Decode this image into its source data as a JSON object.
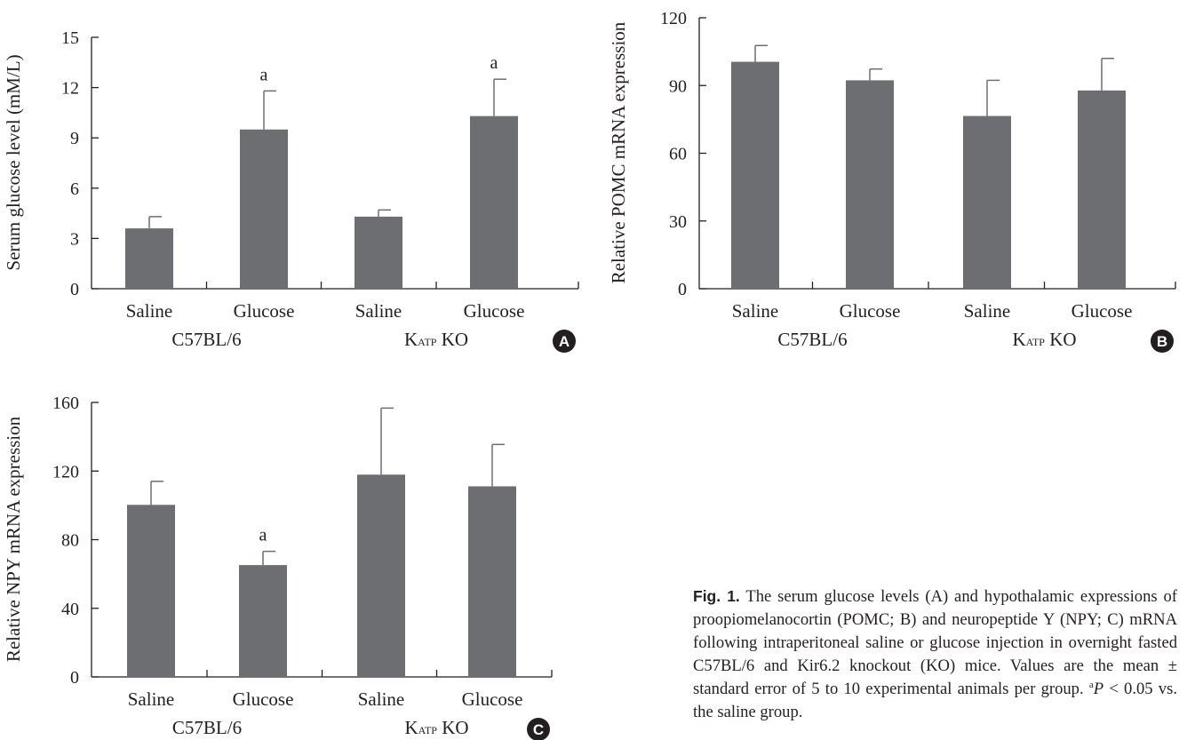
{
  "chart_data": [
    {
      "panel": "A",
      "type": "bar",
      "categories": [
        "Saline",
        "Glucose",
        "Saline",
        "Glucose"
      ],
      "groups": [
        {
          "label_main": "C57BL/6",
          "label_sub": ""
        },
        {
          "label_main": "K",
          "label_sub": "ATP",
          "label_tail": " KO"
        }
      ],
      "values": [
        3.6,
        9.5,
        4.3,
        10.3
      ],
      "errors": [
        0.7,
        2.3,
        0.4,
        2.2
      ],
      "significance": [
        "",
        "a",
        "",
        "a"
      ],
      "ylabel": "Serum glucose level (mM/L)",
      "yticks": [
        0,
        3,
        6,
        9,
        12,
        15
      ],
      "ylim": [
        0,
        15
      ],
      "color": "#6d6e71"
    },
    {
      "panel": "B",
      "type": "bar",
      "categories": [
        "Saline",
        "Glucose",
        "Saline",
        "Glucose"
      ],
      "groups": [
        {
          "label_main": "C57BL/6",
          "label_sub": ""
        },
        {
          "label_main": "K",
          "label_sub": "ATP",
          "label_tail": " KO"
        }
      ],
      "values": [
        100.5,
        92.3,
        76.5,
        87.8
      ],
      "errors": [
        7.2,
        5.0,
        15.8,
        14.2
      ],
      "significance": [
        "",
        "",
        "",
        ""
      ],
      "ylabel": "Relative POMC mRNA expression",
      "yticks": [
        0,
        30,
        60,
        90,
        120
      ],
      "ylim": [
        0,
        120
      ],
      "color": "#6d6e71"
    },
    {
      "panel": "C",
      "type": "bar",
      "categories": [
        "Saline",
        "Glucose",
        "Saline",
        "Glucose"
      ],
      "groups": [
        {
          "label_main": "C57BL/6",
          "label_sub": ""
        },
        {
          "label_main": "K",
          "label_sub": "ATP",
          "label_tail": " KO"
        }
      ],
      "values": [
        100.3,
        65.2,
        117.9,
        111.1
      ],
      "errors": [
        13.7,
        8.0,
        38.8,
        24.4
      ],
      "significance": [
        "",
        "a",
        "",
        ""
      ],
      "ylabel": "Relative NPY mRNA expression",
      "yticks": [
        0,
        40,
        80,
        120,
        160
      ],
      "ylim": [
        0,
        160
      ],
      "color": "#6d6e71"
    }
  ],
  "caption": {
    "label": "Fig. 1.",
    "text_part1": "The serum glucose levels (A) and hypothalamic expressions of proopiomelanocortin (POMC; B) and neuropeptide Y (NPY; C) mRNA following intraperitoneal saline or glucose injection in overnight fasted C57BL/6 and Kir6.2 knockout (KO) mice. Values are the mean ± standard error of 5 to 10 experimental animals per group. ",
    "sup": "a",
    "p_symbol": "P",
    "text_part2": " < 0.05 vs. the saline group."
  }
}
